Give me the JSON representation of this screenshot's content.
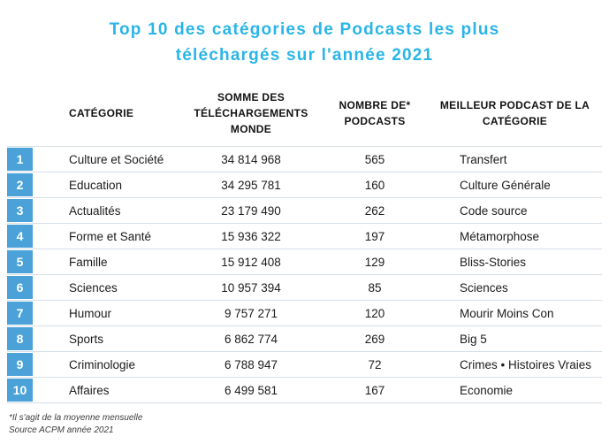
{
  "colors": {
    "title_blue": "#29b5e8",
    "rank_blue": "#4aa2d8",
    "line": "#d6dfe8"
  },
  "chart_data": {
    "type": "table",
    "title": "Top 10 des catégories de Podcasts les plus téléchargés sur l'année 2021",
    "header": {
      "categorie": "CATÉGORIE",
      "somme": "SOMME DES TÉLÉCHARGEMENTS MONDE",
      "nombre": "NOMBRE DE* PODCASTS",
      "meilleur": "MEILLEUR PODCAST DE LA CATÉGORIE"
    },
    "rows": [
      {
        "rank": "1",
        "categorie": "Culture et Société",
        "somme": "34 814 968",
        "nombre": "565",
        "meilleur": "Transfert"
      },
      {
        "rank": "2",
        "categorie": "Education",
        "somme": "34 295 781",
        "nombre": "160",
        "meilleur": "Culture Générale"
      },
      {
        "rank": "3",
        "categorie": "Actualités",
        "somme": "23 179 490",
        "nombre": "262",
        "meilleur": "Code source"
      },
      {
        "rank": "4",
        "categorie": "Forme et Santé",
        "somme": "15 936 322",
        "nombre": "197",
        "meilleur": "Métamorphose"
      },
      {
        "rank": "5",
        "categorie": "Famille",
        "somme": "15 912 408",
        "nombre": "129",
        "meilleur": "Bliss-Stories"
      },
      {
        "rank": "6",
        "categorie": "Sciences",
        "somme": "10 957 394",
        "nombre": "85",
        "meilleur": "Sciences"
      },
      {
        "rank": "7",
        "categorie": "Humour",
        "somme": "9 757 271",
        "nombre": "120",
        "meilleur": "Mourir Moins Con"
      },
      {
        "rank": "8",
        "categorie": "Sports",
        "somme": "6 862 774",
        "nombre": "269",
        "meilleur": "Big 5"
      },
      {
        "rank": "9",
        "categorie": "Criminologie",
        "somme": "6 788 947",
        "nombre": "72",
        "meilleur": "Crimes • Histoires Vraies"
      },
      {
        "rank": "10",
        "categorie": "Affaires",
        "somme": "6 499 581",
        "nombre": "167",
        "meilleur": "Economie"
      }
    ],
    "footnotes": {
      "asterisk": "*Il s'agit de la moyenne mensuelle",
      "source": "Source ACPM année 2021"
    }
  }
}
